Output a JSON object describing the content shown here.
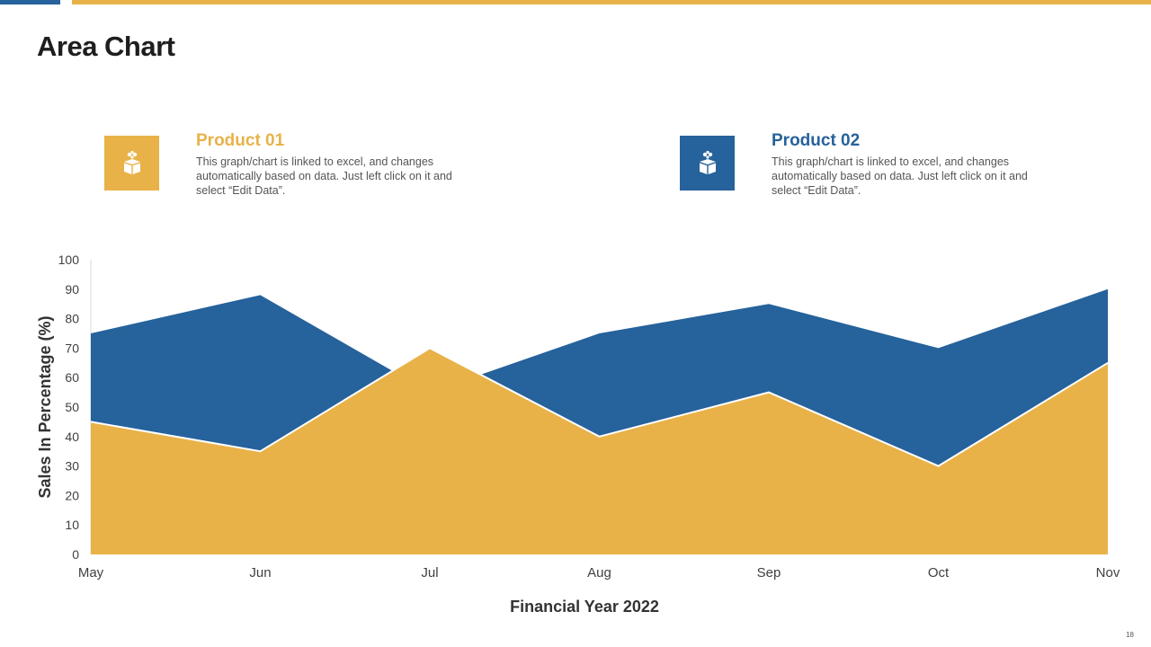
{
  "slide": {
    "title": "Area Chart",
    "page_number": "18"
  },
  "colors": {
    "product01": "#e8b249",
    "product02": "#26629b"
  },
  "legend": [
    {
      "title": "Product 01",
      "icon": "gift-box-icon",
      "description": "This graph/chart is linked to excel, and changes automatically based on data. Just left click on it and select “Edit Data”."
    },
    {
      "title": "Product 02",
      "icon": "gift-box-icon",
      "description": "This graph/chart is linked to excel, and changes automatically based on data. Just left click on it and select “Edit Data”."
    }
  ],
  "chart_data": {
    "type": "area",
    "categories": [
      "May",
      "Jun",
      "Jul",
      "Aug",
      "Sep",
      "Oct",
      "Nov"
    ],
    "series": [
      {
        "name": "Product 02",
        "values": [
          75,
          88,
          55,
          75,
          85,
          70,
          90
        ]
      },
      {
        "name": "Product 01",
        "values": [
          45,
          35,
          70,
          40,
          55,
          30,
          65
        ]
      }
    ],
    "xlabel": "Financial Year 2022",
    "ylabel": "Sales In Percentage (%)",
    "ylim": [
      0,
      100
    ],
    "yticks": [
      0,
      10,
      20,
      30,
      40,
      50,
      60,
      70,
      80,
      90,
      100
    ],
    "grid": false
  }
}
